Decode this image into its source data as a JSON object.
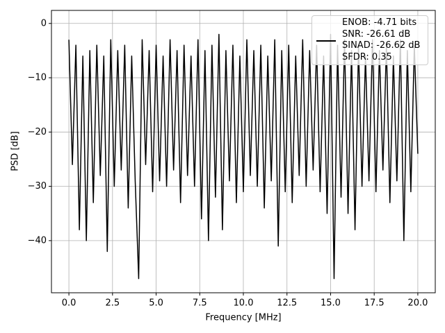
{
  "chart_data": {
    "type": "line",
    "xlabel": "Frequency [MHz]",
    "ylabel": "PSD [dB]",
    "x": [
      0.0,
      0.2,
      0.4,
      0.6,
      0.8,
      1.0,
      1.2,
      1.4,
      1.6,
      1.8,
      2.0,
      2.2,
      2.4,
      2.6,
      2.8,
      3.0,
      3.2,
      3.4,
      3.6,
      3.8,
      4.0,
      4.2,
      4.4,
      4.6,
      4.8,
      5.0,
      5.2,
      5.4,
      5.6,
      5.8,
      6.0,
      6.2,
      6.4,
      6.6,
      6.8,
      7.0,
      7.2,
      7.4,
      7.6,
      7.8,
      8.0,
      8.2,
      8.4,
      8.6,
      8.8,
      9.0,
      9.2,
      9.4,
      9.6,
      9.8,
      10.0,
      10.2,
      10.4,
      10.6,
      10.8,
      11.0,
      11.2,
      11.4,
      11.6,
      11.8,
      12.0,
      12.2,
      12.4,
      12.6,
      12.8,
      13.0,
      13.2,
      13.4,
      13.6,
      13.8,
      14.0,
      14.2,
      14.4,
      14.6,
      14.8,
      15.0,
      15.2,
      15.4,
      15.6,
      15.8,
      16.0,
      16.2,
      16.4,
      16.6,
      16.8,
      17.0,
      17.2,
      17.4,
      17.6,
      17.8,
      18.0,
      18.2,
      18.4,
      18.6,
      18.8,
      19.0,
      19.2,
      19.4,
      19.6,
      19.8,
      20.0
    ],
    "series": [
      {
        "name": "ENOB: -4.71 bits\nSNR: -26.61 dB\nSINAD: -26.62 dB\nSFDR: 0.35",
        "color": "#000000",
        "values": [
          -3,
          -26,
          -4,
          -38,
          -6,
          -40,
          -5,
          -33,
          -4,
          -28,
          -6,
          -42,
          -3,
          -30,
          -5,
          -27,
          -4,
          -34,
          -6,
          -29,
          -47,
          -3,
          -26,
          -5,
          -31,
          -4,
          -29,
          -6,
          -30,
          -3,
          -27,
          -5,
          -33,
          -4,
          -28,
          -6,
          -30,
          -3,
          -36,
          -5,
          -40,
          -4,
          -32,
          -2,
          -38,
          -5,
          -29,
          -4,
          -33,
          -6,
          -31,
          -3,
          -28,
          -5,
          -30,
          -4,
          -34,
          -6,
          -29,
          -3,
          -41,
          -5,
          -31,
          -4,
          -33,
          -6,
          -28,
          -3,
          -30,
          -5,
          -27,
          -4,
          -31,
          -6,
          -35,
          -2,
          -47,
          -4,
          -32,
          -3,
          -35,
          -5,
          -38,
          -4,
          -30,
          -6,
          -29,
          -3,
          -31,
          -5,
          -27,
          -4,
          -33,
          -6,
          -29,
          -3,
          -40,
          -5,
          -31,
          -4,
          -24
        ]
      }
    ],
    "xlim": [
      -1,
      21
    ],
    "ylim": [
      -49.6,
      2.4
    ],
    "xticks": [
      {
        "value": 0,
        "label": "0.0"
      },
      {
        "value": 2.5,
        "label": "2.5"
      },
      {
        "value": 5,
        "label": "5.0"
      },
      {
        "value": 7.5,
        "label": "7.5"
      },
      {
        "value": 10,
        "label": "10.0"
      },
      {
        "value": 12.5,
        "label": "12.5"
      },
      {
        "value": 15,
        "label": "15.0"
      },
      {
        "value": 17.5,
        "label": "17.5"
      },
      {
        "value": 20,
        "label": "20.0"
      }
    ],
    "yticks": [
      0,
      {
        "value": -10,
        "label": "−10"
      },
      {
        "value": -20,
        "label": "−20"
      },
      {
        "value": -30,
        "label": "−30"
      },
      {
        "value": -40,
        "label": "−40"
      }
    ],
    "grid": true
  }
}
